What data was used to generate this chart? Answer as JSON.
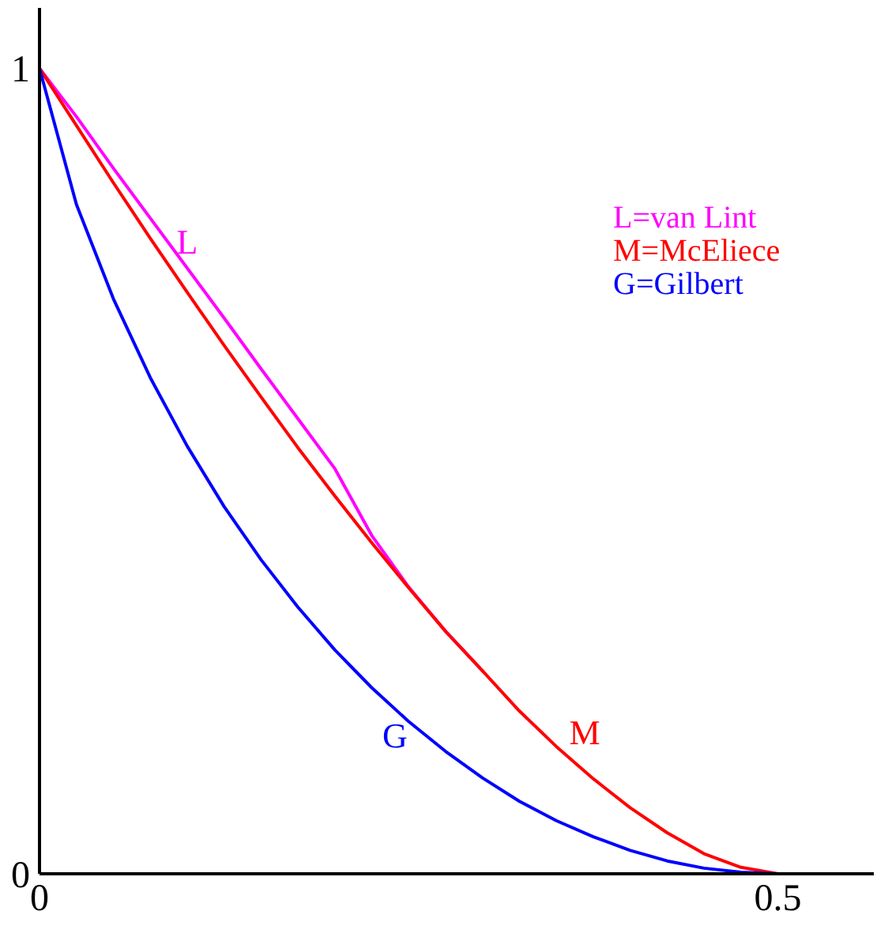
{
  "chart_data": {
    "type": "line",
    "x": [
      0,
      0.025,
      0.05,
      0.075,
      0.1,
      0.125,
      0.15,
      0.175,
      0.2,
      0.225,
      0.25,
      0.275,
      0.3,
      0.325,
      0.35,
      0.375,
      0.4,
      0.425,
      0.45,
      0.475,
      0.5
    ],
    "series": [
      {
        "name": "L=van Lint",
        "color": "#ff00ff",
        "values": [
          1,
          0.94,
          0.876,
          0.814,
          0.752,
          0.69,
          0.627,
          0.565,
          0.503,
          0.42,
          0.356,
          0.301,
          0.252,
          null,
          null,
          null,
          null,
          null,
          null,
          null,
          null
        ]
      },
      {
        "name": "M=McEliece",
        "color": "#ff0000",
        "values": [
          1,
          0.929,
          0.858,
          0.789,
          0.722,
          0.656,
          0.592,
          0.529,
          0.469,
          0.411,
          0.355,
          0.301,
          0.252,
          0.202,
          0.158,
          0.118,
          0.082,
          0.051,
          0.025,
          0.008,
          0
        ]
      },
      {
        "name": "G=Gilbert",
        "color": "#0000ff",
        "values": [
          1,
          0.831,
          0.714,
          0.616,
          0.531,
          0.456,
          0.39,
          0.331,
          0.278,
          0.231,
          0.189,
          0.152,
          0.119,
          0.09,
          0.066,
          0.046,
          0.029,
          0.016,
          0.007,
          0.002,
          0
        ]
      }
    ],
    "xlim": [
      0,
      0.565
    ],
    "xticks": [
      0,
      0.5
    ],
    "ylim": [
      0,
      1.075
    ],
    "yticks": [
      0,
      1
    ],
    "annotations": [
      {
        "text": "L",
        "x": 0.1,
        "y": 0.77
      },
      "M",
      "G"
    ],
    "grid": false,
    "marker": "none",
    "line_style": "solid"
  }
}
